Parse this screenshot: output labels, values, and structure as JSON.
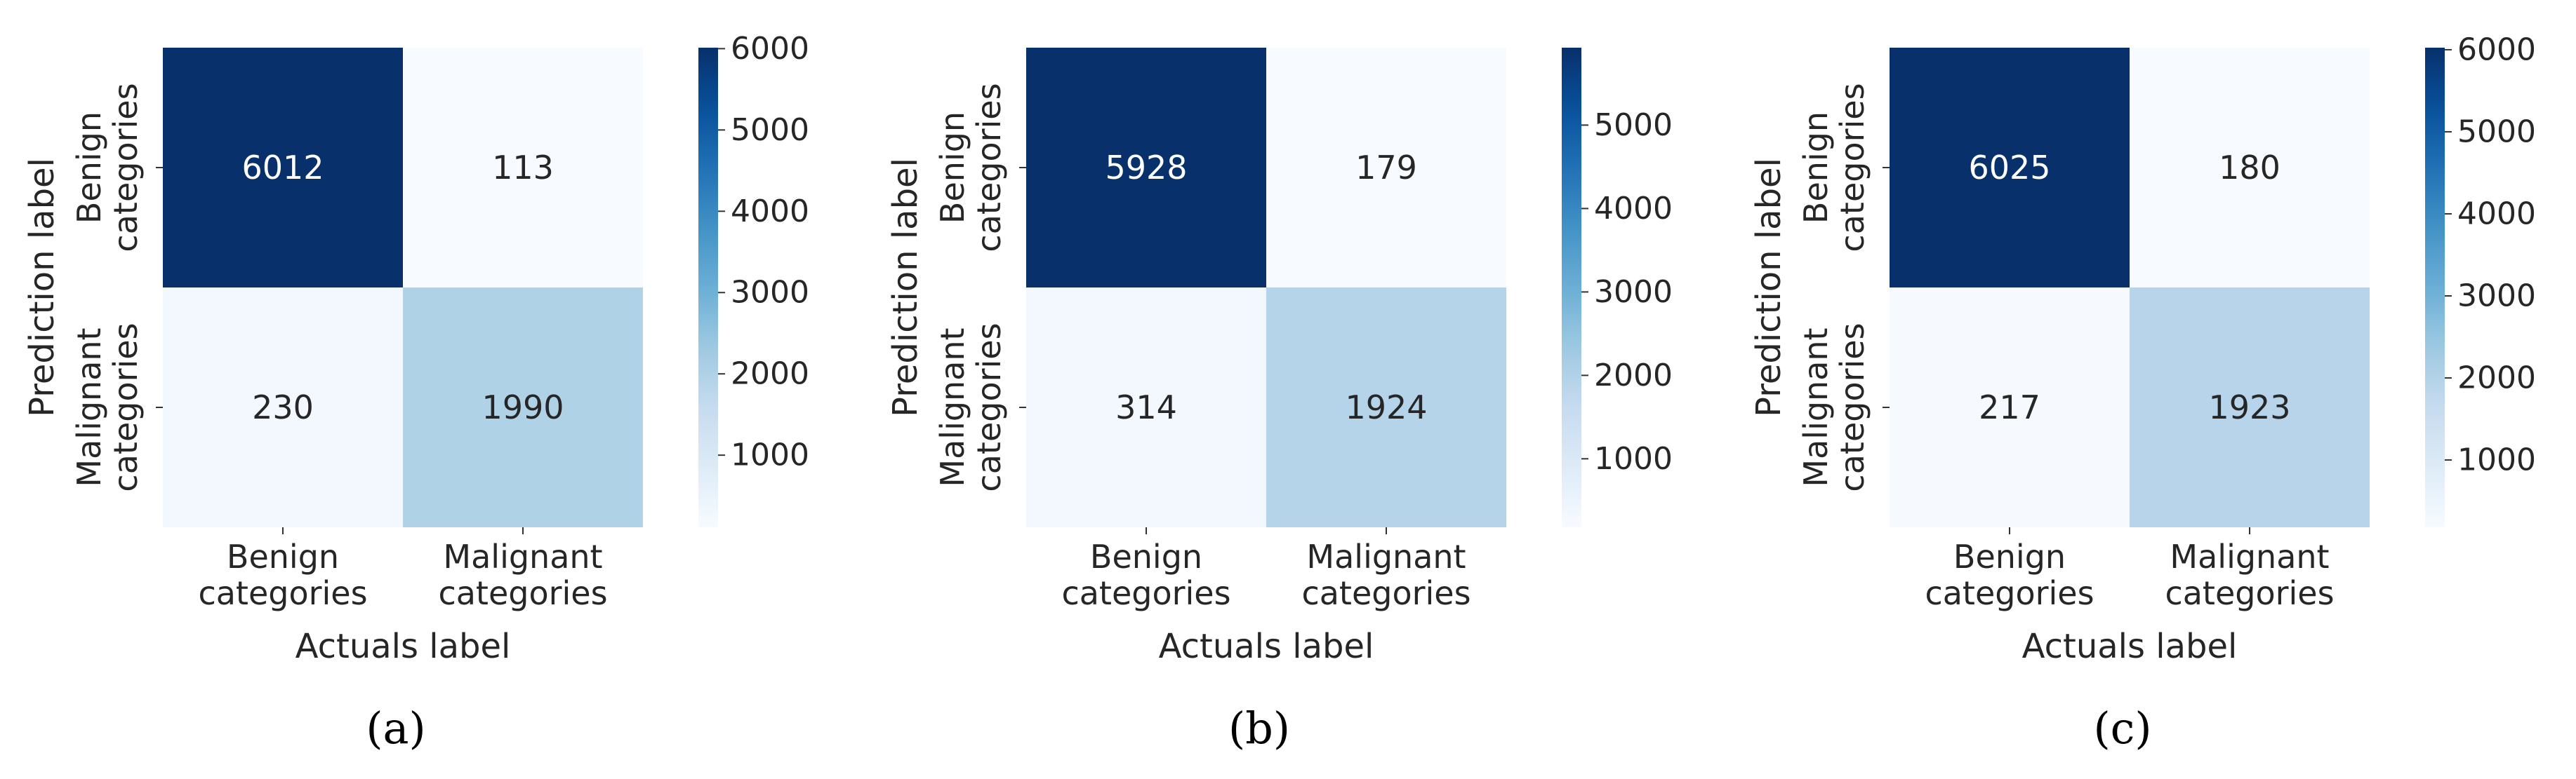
{
  "chart_data": [
    {
      "type": "heatmap",
      "panel_label": "(a)",
      "ylabel": "Prediction label",
      "xlabel": "Actuals label",
      "row_labels": [
        [
          "Benign",
          "categories"
        ],
        [
          "Malignant",
          "categories"
        ]
      ],
      "col_labels": [
        [
          "Benign",
          "categories"
        ],
        [
          "Malignant",
          "categories"
        ]
      ],
      "values": [
        [
          6012,
          113
        ],
        [
          230,
          1990
        ]
      ],
      "colorbar": {
        "ticks": [
          1000,
          2000,
          3000,
          4000,
          5000,
          6000
        ],
        "range": [
          113,
          6012
        ],
        "colormap": "Blues"
      }
    },
    {
      "type": "heatmap",
      "panel_label": "(b)",
      "ylabel": "Prediction label",
      "xlabel": "Actuals label",
      "row_labels": [
        [
          "Benign",
          "categories"
        ],
        [
          "Malignant",
          "categories"
        ]
      ],
      "col_labels": [
        [
          "Benign",
          "categories"
        ],
        [
          "Malignant",
          "categories"
        ]
      ],
      "values": [
        [
          5928,
          179
        ],
        [
          314,
          1924
        ]
      ],
      "colorbar": {
        "ticks": [
          1000,
          2000,
          3000,
          4000,
          5000
        ],
        "range": [
          179,
          5928
        ],
        "colormap": "Blues"
      }
    },
    {
      "type": "heatmap",
      "panel_label": "(c)",
      "ylabel": "Prediction label",
      "xlabel": "Actuals label",
      "row_labels": [
        [
          "Benign",
          "categories"
        ],
        [
          "Malignant",
          "categories"
        ]
      ],
      "col_labels": [
        [
          "Benign",
          "categories"
        ],
        [
          "Malignant",
          "categories"
        ]
      ],
      "values": [
        [
          6025,
          180
        ],
        [
          217,
          1923
        ]
      ],
      "colorbar": {
        "ticks": [
          1000,
          2000,
          3000,
          4000,
          5000,
          6000
        ],
        "range": [
          180,
          6025
        ],
        "colormap": "Blues"
      }
    }
  ]
}
